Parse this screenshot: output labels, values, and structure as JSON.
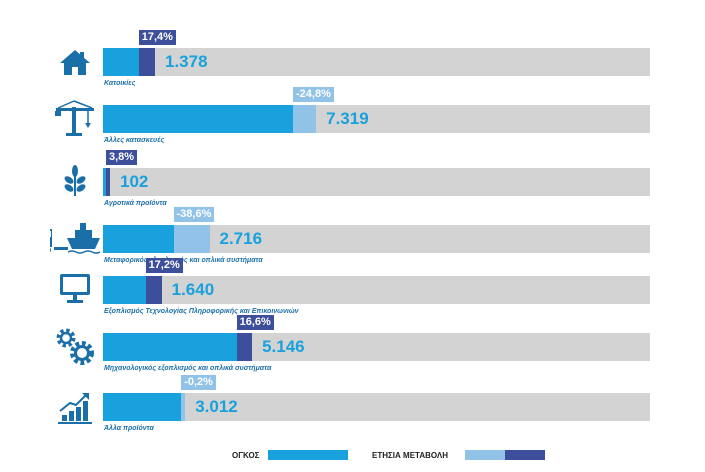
{
  "chart_data": {
    "type": "bar",
    "series": [
      {
        "name": "ΟΓΚΟΣ",
        "values": [
          1378,
          7319,
          102,
          2716,
          1640,
          5146,
          3012
        ]
      },
      {
        "name": "ΕΤΗΣΙΑ ΜΕΤΑΒΟΛΗ",
        "values": [
          17.4,
          -24.8,
          3.8,
          -38.6,
          17.2,
          16.6,
          -0.2
        ]
      }
    ],
    "rows": [
      {
        "label": "Κατοικίες",
        "icon": "house-icon",
        "volume": 1378,
        "volume_text": "1.378",
        "change": 17.4,
        "change_text": "17,4%"
      },
      {
        "label": "Άλλες κατασκευές",
        "icon": "crane-icon",
        "volume": 7319,
        "volume_text": "7.319",
        "change": -24.8,
        "change_text": "-24,8%"
      },
      {
        "label": "Αγροτικά προϊόντα",
        "icon": "plant-icon",
        "volume": 102,
        "volume_text": "102",
        "change": 3.8,
        "change_text": "3,8%"
      },
      {
        "label": "Μεταφορικός εξοπλισμός και οπλικά συστήματα",
        "icon": "truck-ship-icon",
        "volume": 2716,
        "volume_text": "2.716",
        "change": -38.6,
        "change_text": "-38,6%"
      },
      {
        "label": "Εξοπλισμός Τεχνολογίας Πληροφορικής και Επικοινωνιών",
        "icon": "monitor-icon",
        "volume": 1640,
        "volume_text": "1.640",
        "change": 17.2,
        "change_text": "17,2%"
      },
      {
        "label": "Μηχανολογικός εξοπλισμός και οπλικά συστήματα",
        "icon": "gears-icon",
        "volume": 5146,
        "volume_text": "5.146",
        "change": 16.6,
        "change_text": "16,6%"
      },
      {
        "label": "Άλλα προϊόντα",
        "icon": "growth-chart-icon",
        "volume": 3012,
        "volume_text": "3.012",
        "change": -0.2,
        "change_text": "-0,2%"
      }
    ],
    "legend": {
      "volume_label": "ΟΓΚΟΣ",
      "change_label": "ΕΤΗΣΙΑ ΜΕΤΑΒΟΛΗ",
      "position": "bottom"
    },
    "colors": {
      "volume": "#18a1dc",
      "change_positive": "#3d4f9a",
      "change_negative": "#91c2e8",
      "track": "#d3d3d3",
      "icon": "#1b6fa8"
    }
  }
}
